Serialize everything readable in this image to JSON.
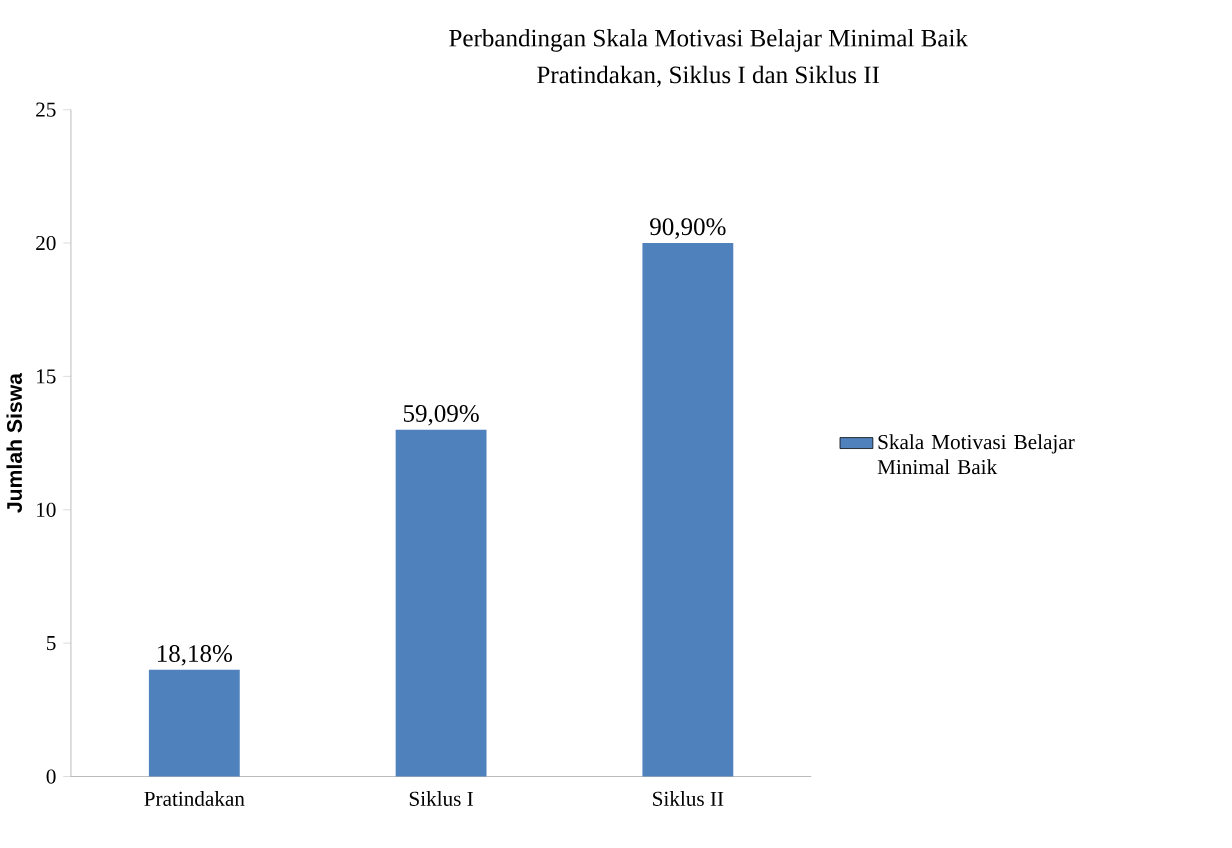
{
  "chart_data": {
    "type": "bar",
    "title": "Perbandingan  Skala Motivasi Belajar Minimal Baik",
    "subtitle": "Pratindakan,  Siklus I dan Siklus II",
    "ylabel": "Jumlah Siswa",
    "categories": [
      "Pratindakan",
      "Siklus I",
      "Siklus II"
    ],
    "series": [
      {
        "name": "Skala Motivasi Belajar Minimal Baik",
        "color": "#4f81bd",
        "values": [
          4,
          13,
          20
        ]
      }
    ],
    "annotations": [
      {
        "text": "18,18%",
        "x": "Pratindakan",
        "y": 4
      },
      {
        "text": "59,09%",
        "x": "Siklus I",
        "y": 13
      },
      {
        "text": "90,90%",
        "x": "Siklus II",
        "y": 20
      }
    ],
    "ylim": [
      0,
      25
    ],
    "yticks": [
      0,
      5,
      10,
      15,
      20,
      25
    ],
    "legend": "right"
  }
}
